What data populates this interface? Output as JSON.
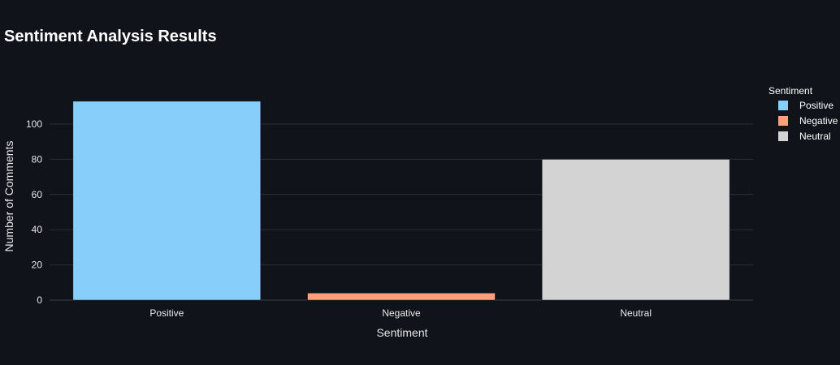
{
  "chart_data": {
    "type": "bar",
    "title": "Sentiment Analysis Results",
    "xlabel": "Sentiment",
    "ylabel": "Number of Comments",
    "categories": [
      "Positive",
      "Negative",
      "Neutral"
    ],
    "values": [
      113,
      4,
      80
    ],
    "colors": [
      "#87cefa",
      "#ffa07a",
      "#d3d3d3"
    ],
    "ylim": [
      0,
      118.9
    ],
    "yticks": [
      0,
      20,
      40,
      60,
      80,
      100
    ],
    "grid": true,
    "legend": {
      "title": "Sentiment",
      "placement": "right",
      "entries": [
        "Positive",
        "Negative",
        "Neutral"
      ]
    }
  }
}
